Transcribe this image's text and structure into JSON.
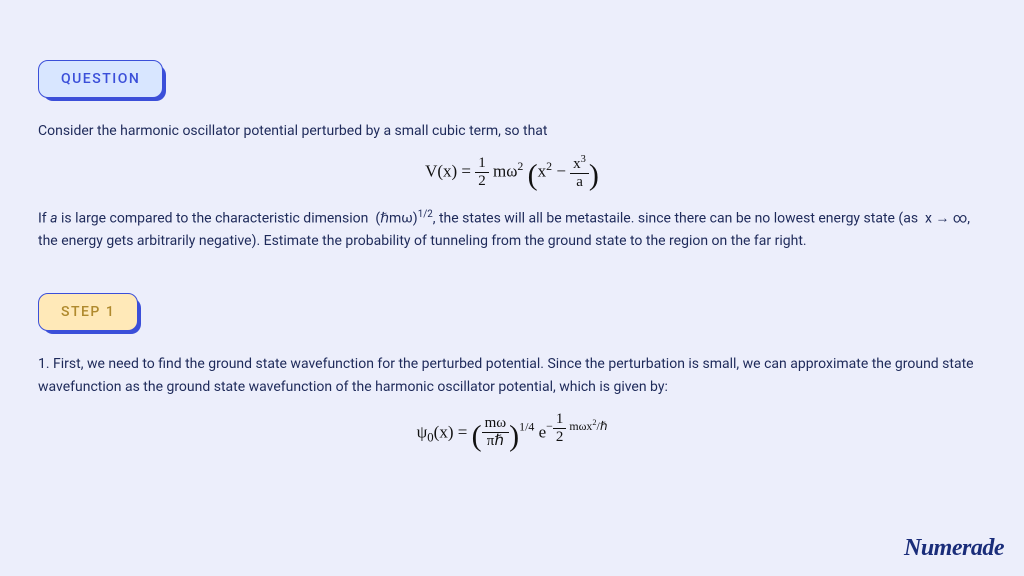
{
  "pill_question": "QUESTION",
  "pill_step": "STEP 1",
  "question": {
    "p1": "Consider the harmonic oscillator potential perturbed by a small cubic term, so that",
    "eq1_html": "V(x) = <span class='frac'><span class='num'>1</span><span class='den'>2</span></span> mω<sup>2</sup> <span class='bigparen'>(</span>x<sup>2</sup> − <span class='frac'><span class='num'>x<sup>3</sup></span><span class='den'>a</span></span><span class='bigparen'>)</span>",
    "p2_html": "If <i>a</i> is large compared to the characteristic dimension&nbsp; (ℏmω)<sup>1/2</sup>, the states will all be metastaile. since there can be no lowest energy state (as&nbsp; x → ∞, the energy gets arbitrarily negative). Estimate the probability of tunneling from the ground state to the region on the far right."
  },
  "step1": {
    "p1": "1. First, we need to find the ground state wavefunction for the perturbed potential. Since the perturbation is small, we can approximate the ground state wavefunction as the ground state wavefunction of the harmonic oscillator potential, which is given by:",
    "eq1_html": "ψ<sub>0</sub>(x) = <span class='bigparen'>(</span><span class='frac'><span class='num'>mω</span><span class='den'>πℏ</span></span><span class='bigparen'>)</span><sup>1/4</sup> e<sup>−<span style='font-size:0.8em'><span class='frac'><span class='num'>1</span><span class='den'>2</span></span></span> mωx<sup>2</sup>/ℏ</sup>"
  },
  "brand": "Numerade"
}
